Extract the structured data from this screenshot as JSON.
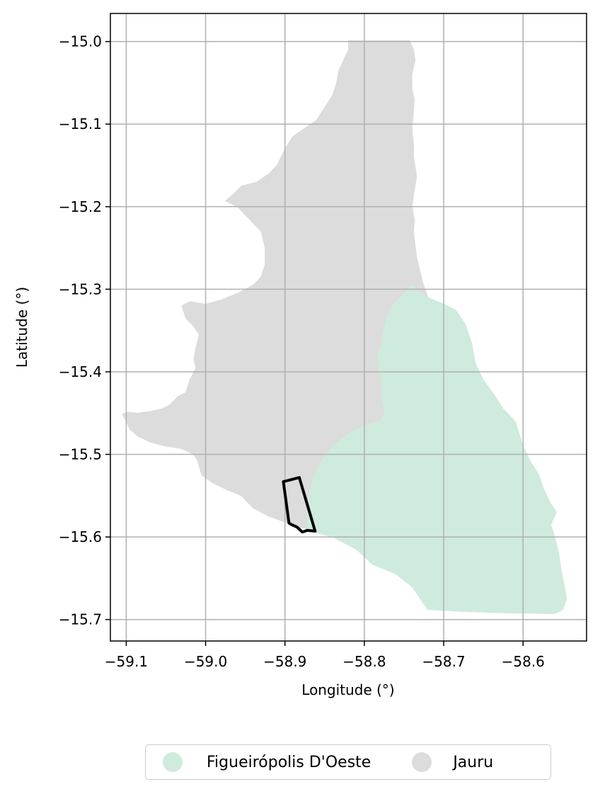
{
  "chart_data": {
    "type": "map",
    "xlabel": "Longitude (°)",
    "ylabel": "Latitude (°)",
    "xlim": [
      -59.12,
      -58.52
    ],
    "ylim": [
      -15.726,
      -14.966
    ],
    "x_ticks": [
      "−59.1",
      "−59.0",
      "−58.9",
      "−58.8",
      "−58.7",
      "−58.6"
    ],
    "x_tick_values": [
      -59.1,
      -59.0,
      -58.9,
      -58.8,
      -58.7,
      -58.6
    ],
    "y_ticks": [
      "−15.0",
      "−15.1",
      "−15.2",
      "−15.3",
      "−15.4",
      "−15.5",
      "−15.6",
      "−15.7"
    ],
    "y_tick_values": [
      -15.0,
      -15.1,
      -15.2,
      -15.3,
      -15.4,
      -15.5,
      -15.6,
      -15.7
    ],
    "grid": true,
    "legend_position": "bottom-center",
    "regions": [
      {
        "name": "Jauru",
        "color": "#dcdcdc",
        "polygon": [
          [
            -58.82,
            -14.999
          ],
          [
            -58.743,
            -14.999
          ],
          [
            -58.738,
            -15.01
          ],
          [
            -58.736,
            -15.023
          ],
          [
            -58.74,
            -15.04
          ],
          [
            -58.74,
            -15.058
          ],
          [
            -58.737,
            -15.07
          ],
          [
            -58.738,
            -15.085
          ],
          [
            -58.74,
            -15.105
          ],
          [
            -58.738,
            -15.125
          ],
          [
            -58.738,
            -15.14
          ],
          [
            -58.734,
            -15.163
          ],
          [
            -58.737,
            -15.18
          ],
          [
            -58.74,
            -15.2
          ],
          [
            -58.737,
            -15.215
          ],
          [
            -58.738,
            -15.232
          ],
          [
            -58.734,
            -15.262
          ],
          [
            -58.73,
            -15.278
          ],
          [
            -58.726,
            -15.293
          ],
          [
            -58.72,
            -15.31
          ],
          [
            -58.735,
            -15.315
          ],
          [
            -58.745,
            -15.3
          ],
          [
            -58.755,
            -15.31
          ],
          [
            -58.765,
            -15.32
          ],
          [
            -58.772,
            -15.335
          ],
          [
            -58.776,
            -15.35
          ],
          [
            -58.778,
            -15.365
          ],
          [
            -58.783,
            -15.38
          ],
          [
            -58.782,
            -15.395
          ],
          [
            -58.778,
            -15.41
          ],
          [
            -58.778,
            -15.43
          ],
          [
            -58.774,
            -15.45
          ],
          [
            -58.78,
            -15.46
          ],
          [
            -58.8,
            -15.465
          ],
          [
            -58.82,
            -15.475
          ],
          [
            -58.84,
            -15.49
          ],
          [
            -58.855,
            -15.51
          ],
          [
            -58.865,
            -15.53
          ],
          [
            -58.87,
            -15.55
          ],
          [
            -58.872,
            -15.57
          ],
          [
            -58.872,
            -15.59
          ],
          [
            -58.885,
            -15.588
          ],
          [
            -58.9,
            -15.582
          ],
          [
            -58.92,
            -15.575
          ],
          [
            -58.94,
            -15.565
          ],
          [
            -58.955,
            -15.55
          ],
          [
            -58.975,
            -15.542
          ],
          [
            -58.99,
            -15.535
          ],
          [
            -59.005,
            -15.525
          ],
          [
            -59.01,
            -15.508
          ],
          [
            -59.015,
            -15.5
          ],
          [
            -59.03,
            -15.493
          ],
          [
            -59.05,
            -15.49
          ],
          [
            -59.07,
            -15.485
          ],
          [
            -59.085,
            -15.478
          ],
          [
            -59.095,
            -15.47
          ],
          [
            -59.1,
            -15.46
          ],
          [
            -59.105,
            -15.451
          ],
          [
            -59.098,
            -15.449
          ],
          [
            -59.085,
            -15.45
          ],
          [
            -59.07,
            -15.448
          ],
          [
            -59.055,
            -15.445
          ],
          [
            -59.045,
            -15.44
          ],
          [
            -59.035,
            -15.43
          ],
          [
            -59.025,
            -15.425
          ],
          [
            -59.02,
            -15.41
          ],
          [
            -59.012,
            -15.395
          ],
          [
            -59.015,
            -15.385
          ],
          [
            -59.012,
            -15.37
          ],
          [
            -59.008,
            -15.355
          ],
          [
            -59.015,
            -15.345
          ],
          [
            -59.025,
            -15.335
          ],
          [
            -59.03,
            -15.32
          ],
          [
            -59.02,
            -15.315
          ],
          [
            -59.0,
            -15.318
          ],
          [
            -58.98,
            -15.313
          ],
          [
            -58.96,
            -15.305
          ],
          [
            -58.94,
            -15.295
          ],
          [
            -58.93,
            -15.285
          ],
          [
            -58.925,
            -15.27
          ],
          [
            -58.925,
            -15.25
          ],
          [
            -58.93,
            -15.23
          ],
          [
            -58.945,
            -15.215
          ],
          [
            -58.96,
            -15.2
          ],
          [
            -58.975,
            -15.193
          ],
          [
            -58.965,
            -15.185
          ],
          [
            -58.955,
            -15.175
          ],
          [
            -58.935,
            -15.17
          ],
          [
            -58.92,
            -15.16
          ],
          [
            -58.91,
            -15.15
          ],
          [
            -58.905,
            -15.14
          ],
          [
            -58.9,
            -15.13
          ],
          [
            -58.89,
            -15.115
          ],
          [
            -58.875,
            -15.105
          ],
          [
            -58.86,
            -15.095
          ],
          [
            -58.85,
            -15.08
          ],
          [
            -58.84,
            -15.065
          ],
          [
            -58.835,
            -15.05
          ],
          [
            -58.832,
            -15.035
          ],
          [
            -58.825,
            -15.02
          ],
          [
            -58.82,
            -15.01
          ]
        ]
      },
      {
        "name": "Figueirópolis D'Oeste",
        "color": "#ceebdd",
        "polygon": [
          [
            -58.74,
            -15.294
          ],
          [
            -58.735,
            -15.3
          ],
          [
            -58.72,
            -15.31
          ],
          [
            -58.7,
            -15.318
          ],
          [
            -58.685,
            -15.325
          ],
          [
            -58.673,
            -15.342
          ],
          [
            -58.665,
            -15.365
          ],
          [
            -58.66,
            -15.39
          ],
          [
            -58.65,
            -15.41
          ],
          [
            -58.635,
            -15.43
          ],
          [
            -58.625,
            -15.445
          ],
          [
            -58.61,
            -15.46
          ],
          [
            -58.6,
            -15.49
          ],
          [
            -58.59,
            -15.51
          ],
          [
            -58.58,
            -15.525
          ],
          [
            -58.575,
            -15.54
          ],
          [
            -58.565,
            -15.56
          ],
          [
            -58.558,
            -15.57
          ],
          [
            -58.565,
            -15.585
          ],
          [
            -58.56,
            -15.6
          ],
          [
            -58.555,
            -15.62
          ],
          [
            -58.552,
            -15.64
          ],
          [
            -58.548,
            -15.66
          ],
          [
            -58.545,
            -15.675
          ],
          [
            -58.55,
            -15.688
          ],
          [
            -58.56,
            -15.693
          ],
          [
            -58.62,
            -15.692
          ],
          [
            -58.68,
            -15.69
          ],
          [
            -58.72,
            -15.688
          ],
          [
            -58.74,
            -15.66
          ],
          [
            -58.76,
            -15.645
          ],
          [
            -58.79,
            -15.633
          ],
          [
            -58.81,
            -15.615
          ],
          [
            -58.84,
            -15.6
          ],
          [
            -58.86,
            -15.595
          ],
          [
            -58.872,
            -15.59
          ],
          [
            -58.872,
            -15.57
          ],
          [
            -58.87,
            -15.55
          ],
          [
            -58.865,
            -15.53
          ],
          [
            -58.855,
            -15.51
          ],
          [
            -58.84,
            -15.49
          ],
          [
            -58.82,
            -15.475
          ],
          [
            -58.8,
            -15.465
          ],
          [
            -58.78,
            -15.46
          ],
          [
            -58.774,
            -15.45
          ],
          [
            -58.778,
            -15.43
          ],
          [
            -58.778,
            -15.41
          ],
          [
            -58.782,
            -15.395
          ],
          [
            -58.783,
            -15.38
          ],
          [
            -58.778,
            -15.365
          ],
          [
            -58.776,
            -15.35
          ],
          [
            -58.772,
            -15.335
          ],
          [
            -58.765,
            -15.32
          ],
          [
            -58.755,
            -15.31
          ]
        ]
      }
    ],
    "outline": {
      "polygon": [
        [
          -58.902,
          -15.533
        ],
        [
          -58.882,
          -15.528
        ],
        [
          -58.862,
          -15.593
        ],
        [
          -58.872,
          -15.592
        ],
        [
          -58.878,
          -15.594
        ],
        [
          -58.885,
          -15.588
        ],
        [
          -58.892,
          -15.585
        ],
        [
          -58.895,
          -15.583
        ]
      ],
      "color": "#000000"
    }
  },
  "legend": {
    "items": [
      {
        "label": "Figueirópolis D'Oeste",
        "color": "#ceebdd"
      },
      {
        "label": "Jauru",
        "color": "#dcdcdc"
      }
    ]
  }
}
